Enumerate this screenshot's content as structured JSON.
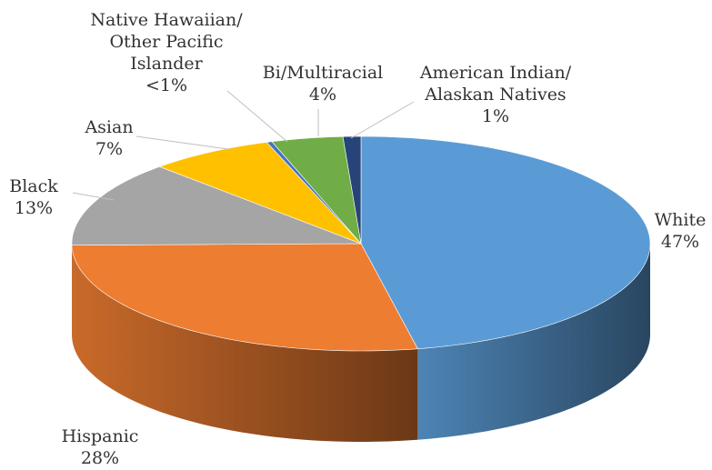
{
  "chart_data": {
    "type": "pie3d",
    "categories": [
      "White",
      "Hispanic",
      "Black",
      "Asian",
      "Native Hawaiian/\nOther Pacific\nIslander",
      "Bi/Multiracial",
      "American Indian/\nAlaskan Natives"
    ],
    "values": [
      47,
      28,
      13,
      7,
      0.3,
      4,
      1
    ],
    "value_labels": [
      "47%",
      "28%",
      "13%",
      "7%",
      "<1%",
      "4%",
      "1%"
    ],
    "colors": [
      "#5b9bd5",
      "#ed7d31",
      "#a5a5a5",
      "#ffc000",
      "#4472c4",
      "#70ad47",
      "#264478"
    ]
  }
}
